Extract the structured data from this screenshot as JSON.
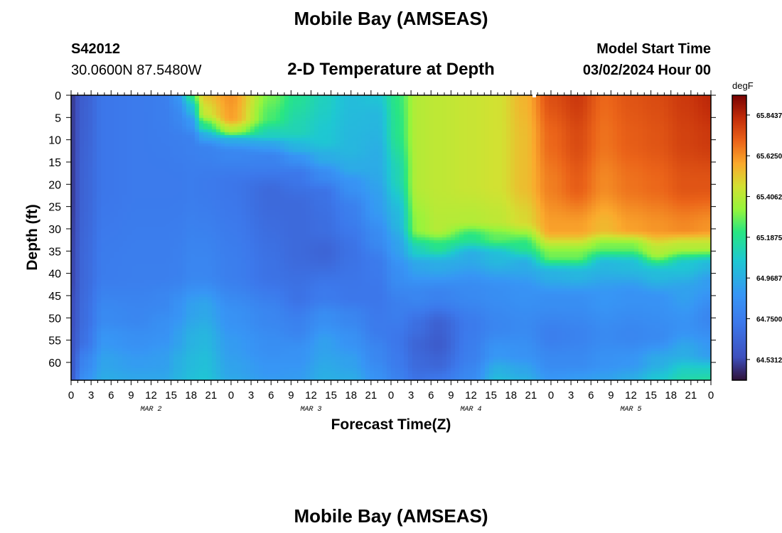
{
  "header": {
    "title": "Mobile Bay (AMSEAS)",
    "station_id": "S42012",
    "coords": "30.0600N  87.5480W",
    "subtitle": "2-D Temperature at Depth",
    "model_label": "Model Start Time",
    "model_time": "03/02/2024 Hour 00"
  },
  "footer": {
    "title_repeat": "Mobile Bay (AMSEAS)"
  },
  "chart_data": {
    "type": "heatmap",
    "title": "2-D Temperature at Depth",
    "xlabel": "Forecast Time(Z)",
    "ylabel": "Depth (ft)",
    "x_tick_labels": [
      "0",
      "3",
      "6",
      "9",
      "12",
      "15",
      "18",
      "21",
      "0",
      "3",
      "6",
      "9",
      "12",
      "15",
      "18",
      "21",
      "0",
      "3",
      "6",
      "9",
      "12",
      "15",
      "18",
      "21",
      "0",
      "3",
      "6",
      "9",
      "12",
      "15",
      "18",
      "21",
      "0"
    ],
    "day_labels": [
      "MAR 2",
      "MAR 3",
      "MAR 4",
      "MAR 5"
    ],
    "y_ticks": [
      0,
      5,
      10,
      15,
      20,
      25,
      30,
      35,
      40,
      45,
      50,
      55,
      60
    ],
    "y_range": [
      0,
      64
    ],
    "x_range_hours": [
      0,
      96
    ],
    "colorbar": {
      "unit": "degF",
      "min": 64.42,
      "max": 65.95,
      "ticks": [
        "65.8437",
        "65.6250",
        "65.4062",
        "65.1875",
        "64.9687",
        "64.7500",
        "64.5312"
      ],
      "tick_values": [
        65.8437,
        65.625,
        65.4062,
        65.1875,
        64.9687,
        64.75,
        64.5312
      ]
    },
    "profiles": [
      {
        "hour": 0,
        "depths": [
          0,
          20,
          40,
          50,
          55,
          60,
          64
        ],
        "temps": [
          64.5,
          64.5,
          64.52,
          64.54,
          64.56,
          64.58,
          64.6
        ]
      },
      {
        "hour": 2,
        "depths": [
          0,
          20,
          40,
          50,
          55,
          60,
          64
        ],
        "temps": [
          64.62,
          64.64,
          64.66,
          64.68,
          64.7,
          64.8,
          64.86
        ]
      },
      {
        "hour": 5,
        "depths": [
          0,
          20,
          40,
          50,
          55,
          60,
          64
        ],
        "temps": [
          64.72,
          64.72,
          64.75,
          64.82,
          64.88,
          64.93,
          64.96
        ]
      },
      {
        "hour": 10,
        "depths": [
          0,
          20,
          40,
          50,
          55,
          60,
          64
        ],
        "temps": [
          64.74,
          64.74,
          64.76,
          64.8,
          64.85,
          64.9,
          64.94
        ]
      },
      {
        "hour": 14,
        "depths": [
          0,
          20,
          40,
          46,
          52,
          60,
          64
        ],
        "temps": [
          64.76,
          64.74,
          64.76,
          64.8,
          64.85,
          64.91,
          64.94
        ]
      },
      {
        "hour": 16,
        "depths": [
          0,
          5,
          10,
          20,
          40,
          48,
          55,
          60,
          64
        ],
        "temps": [
          64.86,
          64.8,
          64.76,
          64.74,
          64.77,
          64.86,
          64.92,
          64.97,
          64.99
        ]
      },
      {
        "hour": 18,
        "depths": [
          0,
          3,
          6,
          10,
          20,
          40,
          48,
          55,
          60,
          64
        ],
        "temps": [
          65.2,
          65.02,
          64.88,
          64.77,
          64.75,
          64.8,
          64.92,
          64.98,
          65.01,
          65.03
        ]
      },
      {
        "hour": 20,
        "depths": [
          0,
          4,
          7,
          9,
          12,
          20,
          40,
          48,
          55,
          60,
          64
        ],
        "temps": [
          65.52,
          65.44,
          65.2,
          64.96,
          64.78,
          64.74,
          64.8,
          64.94,
          65.0,
          65.03,
          65.05
        ]
      },
      {
        "hour": 24,
        "depths": [
          0,
          5,
          8,
          10,
          13,
          20,
          40,
          50,
          56,
          62,
          64
        ],
        "temps": [
          65.62,
          65.6,
          65.4,
          64.96,
          64.8,
          64.72,
          64.76,
          64.86,
          64.9,
          64.93,
          64.95
        ]
      },
      {
        "hour": 30,
        "depths": [
          0,
          5,
          9,
          11,
          14,
          22,
          40,
          50,
          56,
          62,
          64
        ],
        "temps": [
          65.3,
          65.25,
          65.1,
          64.93,
          64.78,
          64.66,
          64.7,
          64.8,
          64.84,
          64.88,
          64.9
        ]
      },
      {
        "hour": 34,
        "depths": [
          0,
          8,
          12,
          14,
          18,
          25,
          35,
          45,
          52,
          58,
          64
        ],
        "temps": [
          65.18,
          65.12,
          64.98,
          64.86,
          64.72,
          64.66,
          64.66,
          64.7,
          64.78,
          64.86,
          64.9
        ]
      },
      {
        "hour": 38,
        "depths": [
          0,
          10,
          14,
          18,
          22,
          30,
          35,
          45,
          50,
          56,
          64
        ],
        "temps": [
          65.1,
          65.06,
          64.96,
          64.82,
          64.7,
          64.68,
          64.64,
          64.74,
          64.84,
          64.92,
          64.97
        ]
      },
      {
        "hour": 42,
        "depths": [
          0,
          12,
          16,
          20,
          26,
          35,
          45,
          50,
          55,
          60,
          64
        ],
        "temps": [
          65.02,
          65.0,
          64.96,
          64.86,
          64.76,
          64.7,
          64.72,
          64.8,
          64.86,
          64.92,
          64.96
        ]
      },
      {
        "hour": 46,
        "depths": [
          0,
          5,
          15,
          25,
          32,
          38,
          45,
          52,
          58,
          64
        ],
        "temps": [
          65.05,
          65.0,
          64.96,
          64.9,
          64.82,
          64.74,
          64.72,
          64.74,
          64.8,
          64.86
        ]
      },
      {
        "hour": 49,
        "depths": [
          0,
          8,
          18,
          28,
          34,
          40,
          48,
          55,
          60,
          64
        ],
        "temps": [
          65.22,
          65.2,
          65.12,
          65.0,
          64.92,
          64.84,
          64.76,
          64.72,
          64.74,
          64.78
        ]
      },
      {
        "hour": 52,
        "depths": [
          0,
          10,
          20,
          30,
          35,
          38,
          45,
          52,
          56,
          60,
          64
        ],
        "temps": [
          65.4,
          65.4,
          65.4,
          65.34,
          65.1,
          64.94,
          64.8,
          64.68,
          64.64,
          64.66,
          64.7
        ]
      },
      {
        "hour": 55,
        "depths": [
          0,
          10,
          20,
          30,
          34,
          38,
          45,
          52,
          56,
          60,
          64
        ],
        "temps": [
          65.42,
          65.42,
          65.42,
          65.4,
          65.2,
          64.96,
          64.78,
          64.62,
          64.6,
          64.64,
          64.72
        ]
      },
      {
        "hour": 60,
        "depths": [
          0,
          10,
          20,
          28,
          32,
          36,
          44,
          52,
          58,
          64
        ],
        "temps": [
          65.44,
          65.44,
          65.44,
          65.4,
          65.2,
          64.96,
          64.82,
          64.74,
          64.76,
          64.82
        ]
      },
      {
        "hour": 64,
        "depths": [
          0,
          10,
          20,
          28,
          32,
          36,
          44,
          52,
          58,
          62,
          64
        ],
        "temps": [
          65.46,
          65.46,
          65.46,
          65.42,
          65.28,
          65.02,
          64.84,
          64.8,
          64.88,
          64.98,
          65.02
        ]
      },
      {
        "hour": 68,
        "depths": [
          0,
          10,
          20,
          28,
          34,
          38,
          44,
          52,
          58,
          62,
          64
        ],
        "temps": [
          65.56,
          65.54,
          65.54,
          65.48,
          65.2,
          64.96,
          64.86,
          64.82,
          64.86,
          64.94,
          64.98
        ]
      },
      {
        "hour": 72,
        "depths": [
          0,
          10,
          20,
          30,
          36,
          40,
          46,
          54,
          60,
          64
        ],
        "temps": [
          65.75,
          65.7,
          65.66,
          65.6,
          65.3,
          64.98,
          64.84,
          64.76,
          64.82,
          64.88
        ]
      },
      {
        "hour": 76,
        "depths": [
          0,
          10,
          20,
          30,
          36,
          40,
          46,
          54,
          60,
          64
        ],
        "temps": [
          65.8,
          65.76,
          65.72,
          65.6,
          65.3,
          65.0,
          64.84,
          64.78,
          64.82,
          64.9
        ]
      },
      {
        "hour": 80,
        "depths": [
          0,
          10,
          20,
          30,
          34,
          38,
          45,
          54,
          60,
          64
        ],
        "temps": [
          65.7,
          65.68,
          65.64,
          65.55,
          65.3,
          65.0,
          64.88,
          64.82,
          64.86,
          64.92
        ]
      },
      {
        "hour": 84,
        "depths": [
          0,
          10,
          20,
          30,
          34,
          38,
          45,
          54,
          60,
          64
        ],
        "temps": [
          65.74,
          65.72,
          65.68,
          65.6,
          65.3,
          65.02,
          64.86,
          64.8,
          64.88,
          64.96
        ]
      },
      {
        "hour": 88,
        "depths": [
          0,
          10,
          20,
          30,
          35,
          40,
          46,
          54,
          60,
          64
        ],
        "temps": [
          65.76,
          65.74,
          65.7,
          65.62,
          65.4,
          65.02,
          64.86,
          64.82,
          64.96,
          65.06
        ]
      },
      {
        "hour": 92,
        "depths": [
          0,
          10,
          20,
          30,
          34,
          38,
          44,
          52,
          58,
          62,
          64
        ],
        "temps": [
          65.8,
          65.78,
          65.74,
          65.64,
          65.4,
          65.06,
          64.92,
          64.86,
          64.96,
          65.1,
          65.14
        ]
      },
      {
        "hour": 96,
        "depths": [
          0,
          10,
          20,
          30,
          34,
          38,
          42,
          50,
          58,
          62,
          64
        ],
        "temps": [
          65.84,
          65.8,
          65.74,
          65.62,
          65.4,
          65.0,
          64.9,
          64.8,
          64.9,
          65.1,
          65.16
        ]
      }
    ]
  }
}
